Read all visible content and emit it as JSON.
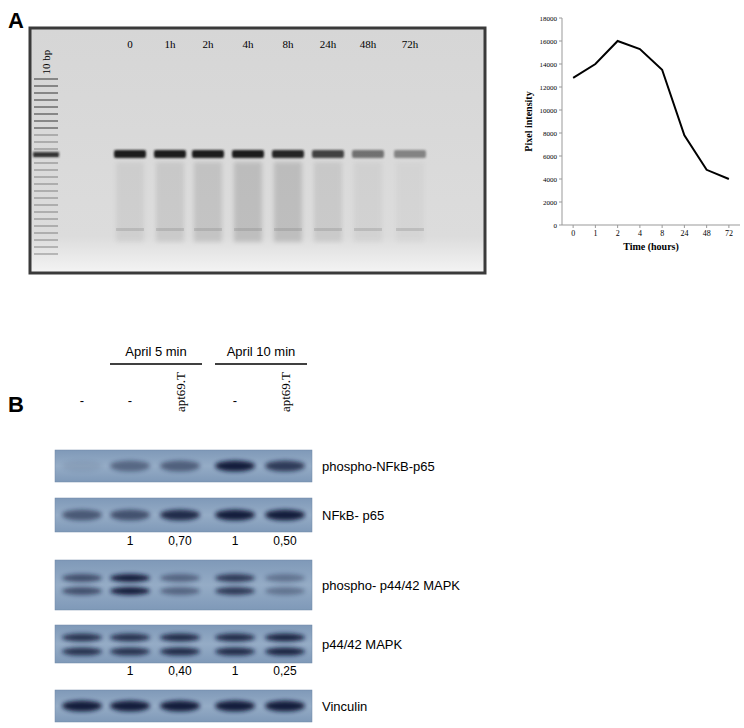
{
  "panel_a": {
    "label": "A",
    "gel": {
      "lanes": [
        "10 bp",
        "0",
        "1h",
        "2h",
        "4h",
        "8h",
        "24h",
        "48h",
        "72h"
      ]
    }
  },
  "chart_data": {
    "type": "line",
    "categories": [
      "0",
      "1",
      "2",
      "4",
      "8",
      "24",
      "48",
      "72"
    ],
    "values": [
      12800,
      14000,
      16000,
      15300,
      13500,
      7800,
      4800,
      4000
    ],
    "x_label": "Time (hours)",
    "y_label": "Pixel intensity",
    "color": "#000000",
    "ylim": [
      0,
      18000
    ],
    "yticks": [
      0,
      2000,
      4000,
      6000,
      8000,
      10000,
      12000,
      14000,
      16000,
      18000
    ],
    "grid": false
  },
  "panel_b": {
    "label": "B",
    "header_groups": [
      "April 5 min",
      "April 10 min"
    ],
    "lanes": [
      "-",
      "-",
      "apt69.T",
      "-",
      "apt69.T"
    ],
    "rows": [
      "phospho-NFkB-p65",
      "NFkB- p65",
      "phospho- p44/42 MAPK",
      "p44/42 MAPK",
      "Vinculin"
    ],
    "quantifications": [
      [
        "1",
        "0,70",
        "1",
        "0,50"
      ],
      [
        "1",
        "0,40",
        "1",
        "0,25"
      ]
    ]
  }
}
